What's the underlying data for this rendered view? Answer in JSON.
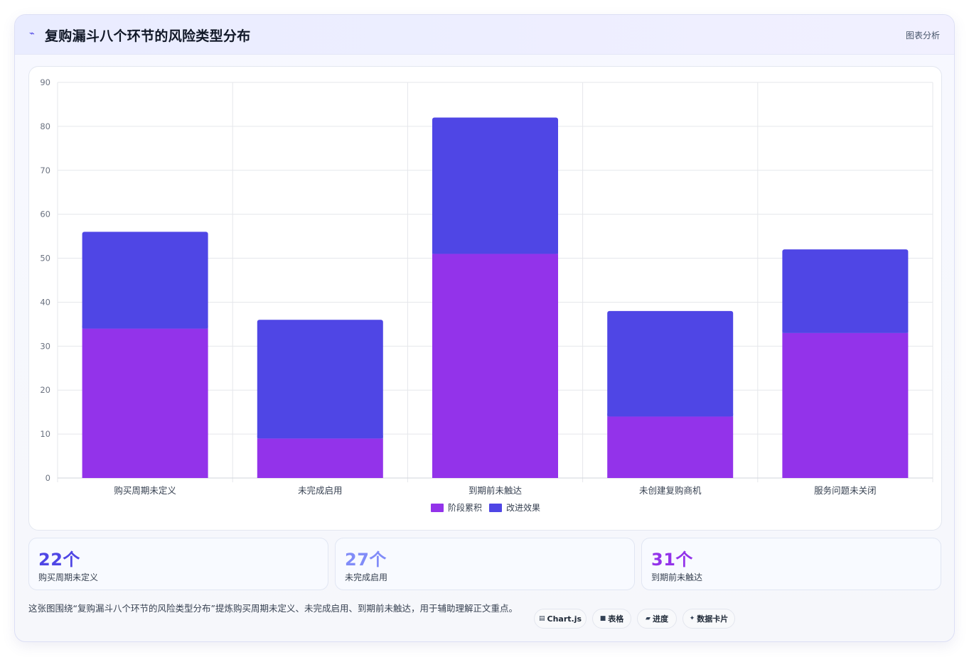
{
  "header": {
    "icon": "chart-trend-icon",
    "title": "复购漏斗八个环节的风险类型分布",
    "tag": "图表分析"
  },
  "chart_data": {
    "type": "bar",
    "stacked": true,
    "categories": [
      "购买周期未定义",
      "未完成启用",
      "到期前未触达",
      "未创建复购商机",
      "服务问题未关闭"
    ],
    "series": [
      {
        "name": "阶段累积",
        "color": "#9333ea",
        "values": [
          34,
          9,
          51,
          14,
          33
        ]
      },
      {
        "name": "改进效果",
        "color": "#4f46e5",
        "values": [
          22,
          27,
          31,
          24,
          19
        ]
      }
    ],
    "ylim": [
      0,
      90
    ],
    "yticks": [
      "0",
      "10",
      "20",
      "30",
      "40",
      "50",
      "60",
      "70",
      "80",
      "90"
    ],
    "grid": true,
    "legend_position": "bottom"
  },
  "stats": [
    {
      "value": "22个",
      "label": "购买周期未定义",
      "color": "#4f46e5"
    },
    {
      "value": "27个",
      "label": "未完成启用",
      "color": "#818cf8"
    },
    {
      "value": "31个",
      "label": "到期前未触达",
      "color": "#9333ea"
    }
  ],
  "summary": "这张图围绕“复购漏斗八个环节的风险类型分布”提炼购买周期未定义、未完成启用、到期前未触达，用于辅助理解正文重点。",
  "chips": [
    {
      "icon": "chart-icon",
      "glyph": "▤",
      "label": "Chart.js"
    },
    {
      "icon": "table-icon",
      "glyph": "■",
      "label": "表格"
    },
    {
      "icon": "progress-icon",
      "glyph": "▰",
      "label": "进度"
    },
    {
      "icon": "sparkle-icon",
      "glyph": "✦",
      "label": "数据卡片"
    }
  ]
}
